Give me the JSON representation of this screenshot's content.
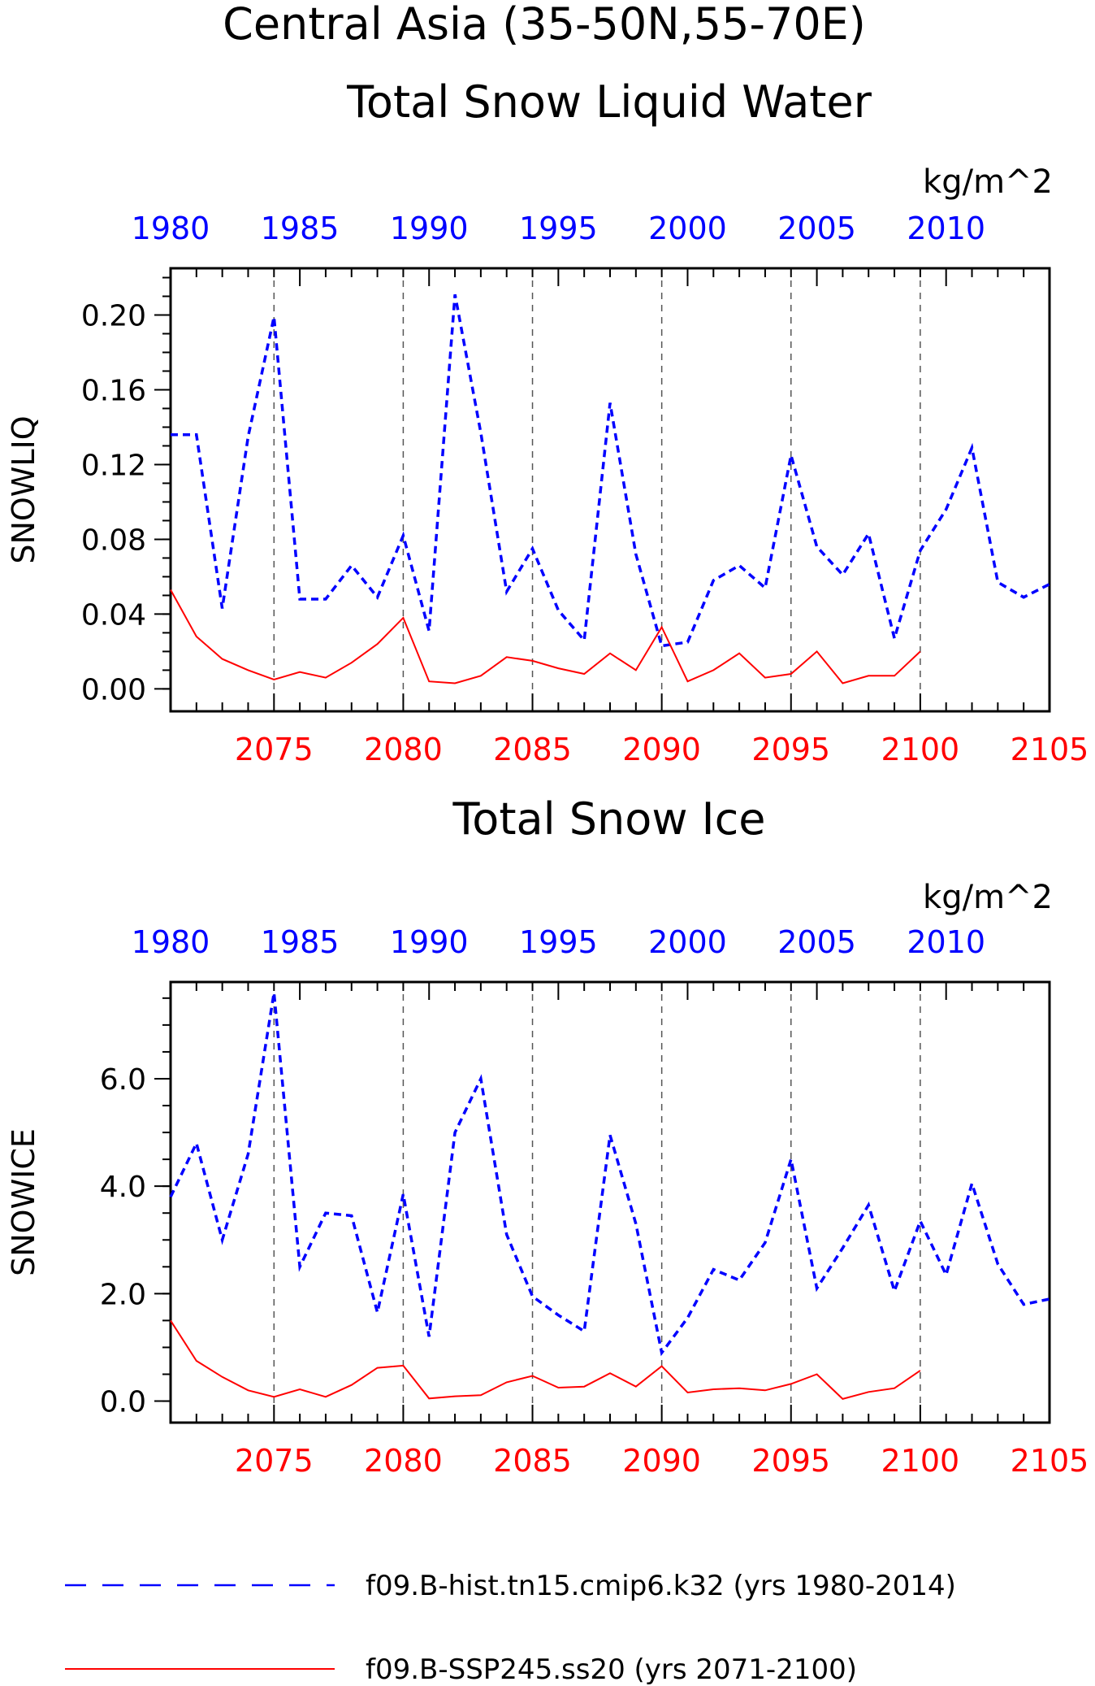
{
  "figure": {
    "title_line1": "Central Asia (35-50N,55-70E)",
    "colors": {
      "hist": "#0000ff",
      "ssp": "#ff0000",
      "axis": "#000000",
      "grid": "#555555"
    }
  },
  "legend": {
    "hist_label": "f09.B-hist.tn15.cmip6.k32 (yrs 1980-2014)",
    "ssp_label": "f09.B-SSP245.ss20 (yrs 2071-2100)"
  },
  "chart_data": [
    {
      "type": "line",
      "title": "Total Snow Liquid Water",
      "ylabel": "SNOWLIQ",
      "units": "kg/m^2",
      "ylim": [
        -0.012,
        0.225
      ],
      "yticks": [
        0.0,
        0.04,
        0.08,
        0.12,
        0.16,
        0.2
      ],
      "ytick_labels": [
        "0.00",
        "0.04",
        "0.08",
        "0.12",
        "0.16",
        "0.20"
      ],
      "bottom_axis": {
        "range": [
          2071,
          2105
        ],
        "ticks": [
          2075,
          2080,
          2085,
          2090,
          2095,
          2100,
          2105
        ],
        "tick_labels": [
          "2075",
          "2080",
          "2085",
          "2090",
          "2095",
          "2100",
          "2105"
        ]
      },
      "top_axis": {
        "ticks": [
          1980,
          1985,
          1990,
          1995,
          2000,
          2005,
          2010
        ],
        "tick_labels": [
          "1980",
          "1985",
          "1990",
          "1995",
          "2000",
          "2005",
          "2010"
        ]
      },
      "grid_x": [
        2075,
        2080,
        2085,
        2090,
        2095,
        2100
      ],
      "series": [
        {
          "key": "hist",
          "x": [
            1980,
            1981,
            1982,
            1983,
            1984,
            1985,
            1986,
            1987,
            1988,
            1989,
            1990,
            1991,
            1992,
            1993,
            1994,
            1995,
            1996,
            1997,
            1998,
            1999,
            2000,
            2001,
            2002,
            2003,
            2004,
            2005,
            2006,
            2007,
            2008,
            2009,
            2010,
            2011,
            2012,
            2013,
            2014
          ],
          "values": [
            0.136,
            0.136,
            0.043,
            0.135,
            0.199,
            0.048,
            0.048,
            0.066,
            0.049,
            0.082,
            0.031,
            0.211,
            0.137,
            0.052,
            0.075,
            0.042,
            0.026,
            0.153,
            0.072,
            0.023,
            0.025,
            0.058,
            0.066,
            0.054,
            0.125,
            0.076,
            0.061,
            0.083,
            0.027,
            0.074,
            0.096,
            0.129,
            0.057,
            0.049,
            0.056
          ]
        },
        {
          "key": "ssp",
          "x": [
            2071,
            2072,
            2073,
            2074,
            2075,
            2076,
            2077,
            2078,
            2079,
            2080,
            2081,
            2082,
            2083,
            2084,
            2085,
            2086,
            2087,
            2088,
            2089,
            2090,
            2091,
            2092,
            2093,
            2094,
            2095,
            2096,
            2097,
            2098,
            2099,
            2100
          ],
          "values": [
            0.053,
            0.028,
            0.016,
            0.01,
            0.005,
            0.009,
            0.006,
            0.014,
            0.024,
            0.038,
            0.004,
            0.003,
            0.007,
            0.017,
            0.015,
            0.011,
            0.008,
            0.019,
            0.01,
            0.033,
            0.004,
            0.01,
            0.019,
            0.006,
            0.008,
            0.02,
            0.003,
            0.007,
            0.007,
            0.02
          ]
        }
      ]
    },
    {
      "type": "line",
      "title": "Total Snow Ice",
      "ylabel": "SNOWICE",
      "units": "kg/m^2",
      "ylim": [
        -0.4,
        7.8
      ],
      "yticks": [
        0.0,
        2.0,
        4.0,
        6.0
      ],
      "ytick_labels": [
        "0.0",
        "2.0",
        "4.0",
        "6.0"
      ],
      "bottom_axis": {
        "range": [
          2071,
          2105
        ],
        "ticks": [
          2075,
          2080,
          2085,
          2090,
          2095,
          2100,
          2105
        ],
        "tick_labels": [
          "2075",
          "2080",
          "2085",
          "2090",
          "2095",
          "2100",
          "2105"
        ]
      },
      "top_axis": {
        "ticks": [
          1980,
          1985,
          1990,
          1995,
          2000,
          2005,
          2010
        ],
        "tick_labels": [
          "1980",
          "1985",
          "1990",
          "1995",
          "2000",
          "2005",
          "2010"
        ]
      },
      "grid_x": [
        2075,
        2080,
        2085,
        2090,
        2095,
        2100
      ],
      "series": [
        {
          "key": "hist",
          "x": [
            1980,
            1981,
            1982,
            1983,
            1984,
            1985,
            1986,
            1987,
            1988,
            1989,
            1990,
            1991,
            1992,
            1993,
            1994,
            1995,
            1996,
            1997,
            1998,
            1999,
            2000,
            2001,
            2002,
            2003,
            2004,
            2005,
            2006,
            2007,
            2008,
            2009,
            2010,
            2011,
            2012,
            2013,
            2014
          ],
          "values": [
            3.8,
            4.8,
            3.0,
            4.6,
            7.6,
            2.5,
            3.5,
            3.45,
            1.65,
            3.85,
            1.2,
            5.0,
            6.0,
            3.1,
            1.95,
            1.6,
            1.3,
            4.95,
            3.3,
            0.9,
            1.55,
            2.45,
            2.25,
            2.95,
            4.5,
            2.1,
            2.85,
            3.65,
            2.05,
            3.35,
            2.35,
            4.05,
            2.55,
            1.8,
            1.9
          ]
        },
        {
          "key": "ssp",
          "x": [
            2071,
            2072,
            2073,
            2074,
            2075,
            2076,
            2077,
            2078,
            2079,
            2080,
            2081,
            2082,
            2083,
            2084,
            2085,
            2086,
            2087,
            2088,
            2089,
            2090,
            2091,
            2092,
            2093,
            2094,
            2095,
            2096,
            2097,
            2098,
            2099,
            2100
          ],
          "values": [
            1.5,
            0.75,
            0.45,
            0.2,
            0.08,
            0.22,
            0.08,
            0.3,
            0.62,
            0.66,
            0.05,
            0.09,
            0.11,
            0.35,
            0.47,
            0.25,
            0.27,
            0.52,
            0.27,
            0.65,
            0.16,
            0.22,
            0.24,
            0.2,
            0.32,
            0.5,
            0.04,
            0.17,
            0.24,
            0.57
          ]
        }
      ]
    }
  ]
}
